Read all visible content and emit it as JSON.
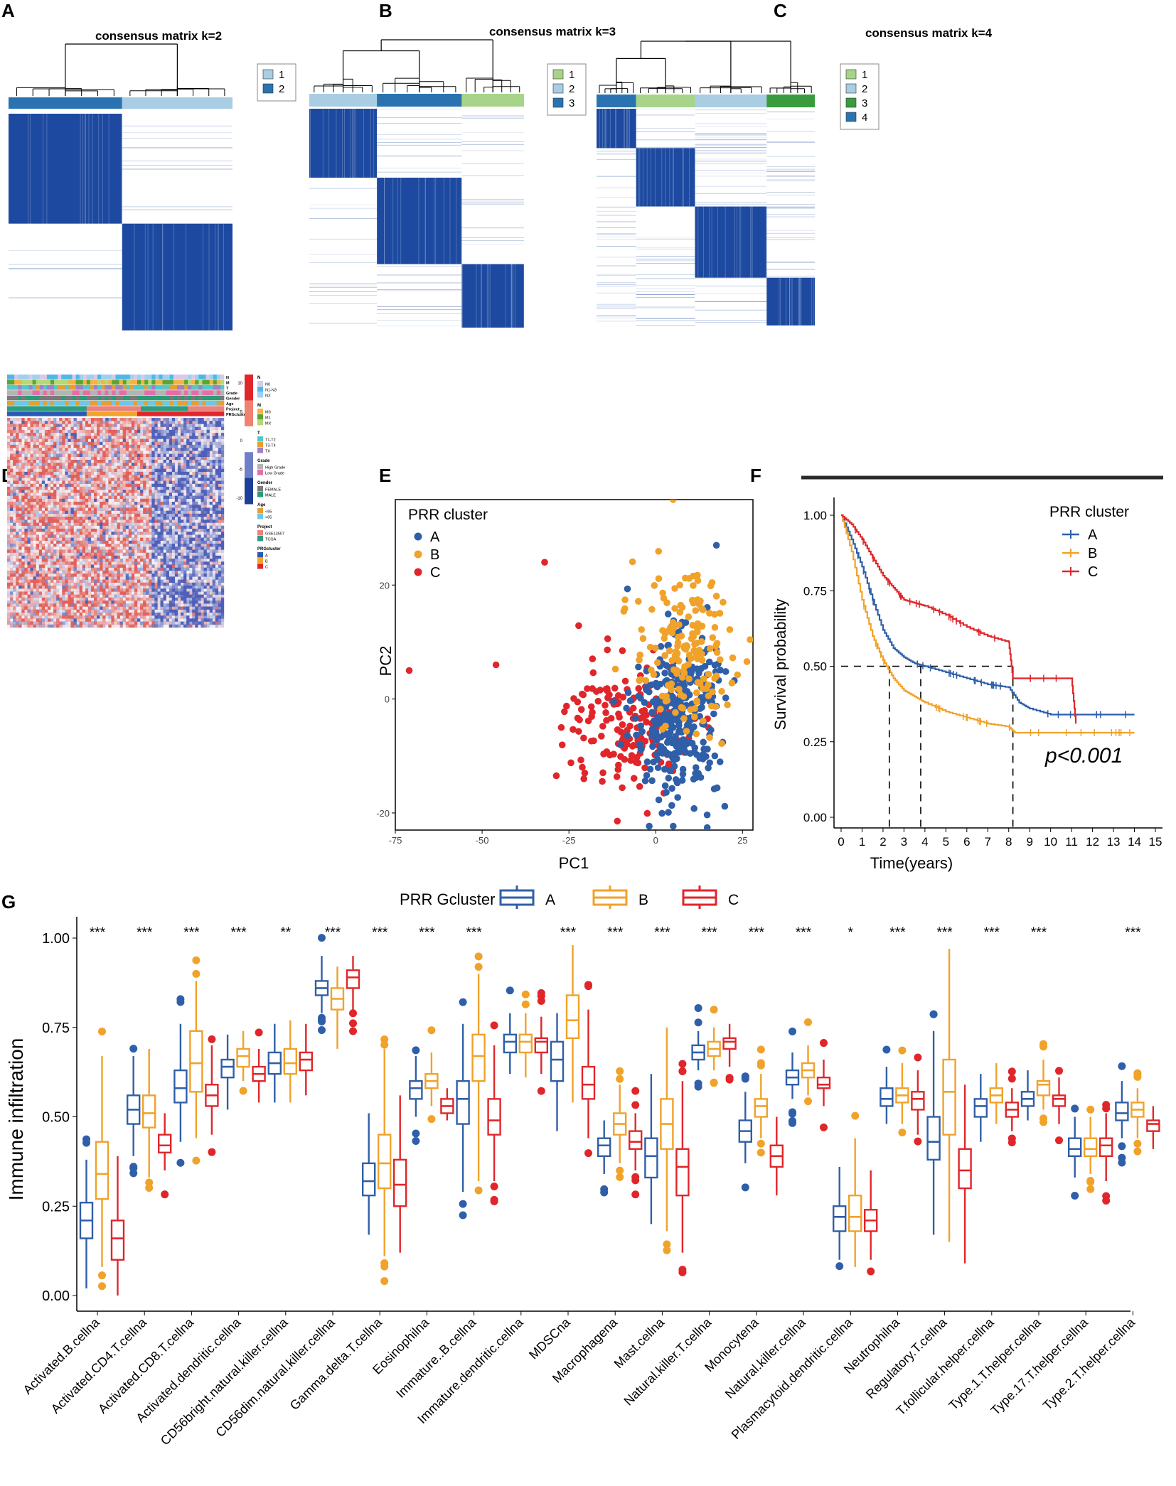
{
  "figure": {
    "panel_letters": [
      "A",
      "B",
      "C",
      "D",
      "E",
      "F",
      "G"
    ],
    "colors": {
      "blue": "#2f5fa8",
      "orange": "#f0a22a",
      "red": "#e0262b",
      "matrix": "#1d4aa0",
      "light_blue": "#a9cde3",
      "mid_blue": "#2a73b0",
      "light_green": "#a8d48a",
      "dark_green": "#3a9b3e"
    }
  },
  "chart_data": [
    {
      "panel": "A",
      "type": "heatmap",
      "title": "consensus matrix k=2",
      "legend": [
        "1",
        "2"
      ],
      "legend_colors": [
        "#a9cde3",
        "#2a73b0"
      ],
      "cluster_order": [
        2,
        1
      ],
      "cluster_sizes": [
        208,
        214
      ]
    },
    {
      "panel": "B",
      "type": "heatmap",
      "title": "consensus matrix k=3",
      "legend": [
        "1",
        "2",
        "3"
      ],
      "legend_colors": [
        "#a8d48a",
        "#a9cde3",
        "#2a73b0"
      ],
      "cluster_order": [
        2,
        3,
        1
      ],
      "cluster_sizes": [
        116,
        126,
        158
      ]
    },
    {
      "panel": "C",
      "type": "heatmap",
      "title": "consensus matrix k=4",
      "legend": [
        "1",
        "2",
        "3",
        "4"
      ],
      "legend_colors": [
        "#a8d48a",
        "#a9cde3",
        "#3a9b3e",
        "#2a73b0"
      ],
      "cluster_order": [
        4,
        1,
        2,
        3
      ],
      "cluster_sizes": [
        110,
        134,
        90,
        74
      ]
    },
    {
      "panel": "D",
      "type": "heatmap",
      "annotation_rows": [
        "N",
        "M",
        "T",
        "Grade",
        "Gender",
        "Age",
        "Project",
        "PRGcluster"
      ],
      "colorbar_ticks": [
        "10",
        "5",
        "0",
        "-5",
        "-10"
      ],
      "legend_groups": [
        {
          "title": "N",
          "items": [
            "N0",
            "N1-N3",
            "NX"
          ],
          "colors": [
            "#d9c8ea",
            "#4fb7e8",
            "#9fd0f0"
          ]
        },
        {
          "title": "M",
          "items": [
            "M0",
            "M1",
            "MX"
          ],
          "colors": [
            "#f4b343",
            "#5aa532",
            "#b6d877"
          ]
        },
        {
          "title": "T",
          "items": [
            "T1-T2",
            "T3-T4",
            "TX"
          ],
          "colors": [
            "#52c9c9",
            "#e4a030",
            "#a280c8"
          ]
        },
        {
          "title": "Grade",
          "items": [
            "High Grade",
            "Low Grade"
          ],
          "colors": [
            "#b4b4b4",
            "#e46fa8"
          ]
        },
        {
          "title": "Gender",
          "items": [
            "FEMALE",
            "MALE"
          ],
          "colors": [
            "#7a7a7a",
            "#2a9c78"
          ]
        },
        {
          "title": "Age",
          "items": [
            "<65",
            ">65"
          ],
          "colors": [
            "#e4a030",
            "#6fc7e6"
          ]
        },
        {
          "title": "Project",
          "items": [
            "GSE13507",
            "TCGA"
          ],
          "colors": [
            "#e8827d",
            "#2d9c7f"
          ]
        },
        {
          "title": "PRGcluster",
          "items": [
            "A",
            "B",
            "C"
          ],
          "colors": [
            "#2a58b5",
            "#f1a22a",
            "#e0262b"
          ]
        }
      ]
    },
    {
      "panel": "E",
      "type": "scatter",
      "xlabel": "PC1",
      "ylabel": "PC2",
      "legend_title": "PRR cluster",
      "legend": [
        "A",
        "B",
        "C"
      ],
      "xlim": [
        -75,
        28
      ],
      "ylim": [
        -23,
        35
      ],
      "xticks": [
        -75,
        -50,
        -25,
        0,
        25
      ],
      "yticks": [
        -20,
        0,
        20
      ],
      "series": [
        {
          "name": "A",
          "n": 330,
          "center": [
            6,
            -3
          ],
          "spread": [
            6,
            7
          ]
        },
        {
          "name": "B",
          "n": 170,
          "center": [
            8,
            8
          ],
          "spread": [
            7,
            7
          ]
        },
        {
          "name": "C",
          "n": 170,
          "center": [
            -8,
            -5
          ],
          "spread": [
            9,
            6
          ]
        }
      ]
    },
    {
      "panel": "F",
      "type": "line",
      "xlabel": "Time(years)",
      "ylabel": "Survival probability",
      "legend_title": "PRR cluster",
      "legend": [
        "A",
        "B",
        "C"
      ],
      "pvalue_label": "p<0.001",
      "xlim": [
        0,
        15
      ],
      "ylim": [
        0,
        1
      ],
      "xticks": [
        0,
        1,
        2,
        3,
        4,
        5,
        6,
        7,
        8,
        9,
        10,
        11,
        12,
        13,
        14,
        15
      ],
      "yticks": [
        "0.00",
        "0.25",
        "0.50",
        "0.75",
        "1.00"
      ],
      "medians": [
        3.8,
        2.3,
        8.2
      ],
      "series": [
        {
          "name": "A",
          "x": [
            0,
            0.5,
            1,
            1.5,
            2,
            2.5,
            3,
            3.5,
            4,
            5,
            6,
            7,
            8,
            8.5,
            9,
            10,
            11,
            12,
            13,
            14
          ],
          "y": [
            1,
            0.92,
            0.83,
            0.72,
            0.62,
            0.56,
            0.53,
            0.51,
            0.5,
            0.48,
            0.46,
            0.44,
            0.43,
            0.38,
            0.36,
            0.34,
            0.34,
            0.34,
            0.34,
            0.34
          ]
        },
        {
          "name": "B",
          "x": [
            0,
            0.5,
            1,
            1.5,
            2,
            2.5,
            3,
            3.5,
            4,
            5,
            6,
            7,
            8,
            8.3,
            9,
            10,
            11,
            12,
            13,
            14
          ],
          "y": [
            1,
            0.88,
            0.72,
            0.6,
            0.52,
            0.46,
            0.42,
            0.4,
            0.38,
            0.35,
            0.33,
            0.31,
            0.3,
            0.28,
            0.28,
            0.28,
            0.28,
            0.28,
            0.28,
            0.28
          ]
        },
        {
          "name": "C",
          "x": [
            0,
            0.5,
            1,
            1.5,
            2,
            2.5,
            3,
            3.5,
            4,
            5,
            6,
            7,
            8,
            8.2,
            9,
            10,
            11,
            11.2
          ],
          "y": [
            1,
            0.97,
            0.92,
            0.86,
            0.8,
            0.76,
            0.72,
            0.71,
            0.7,
            0.67,
            0.63,
            0.6,
            0.58,
            0.46,
            0.46,
            0.46,
            0.46,
            0.31
          ]
        }
      ]
    },
    {
      "panel": "G",
      "type": "box",
      "ylabel": "Immune infiltration",
      "legend_title": "PRR Gcluster",
      "legend": [
        "A",
        "B",
        "C"
      ],
      "ylim": [
        0,
        1.05
      ],
      "yticks": [
        "0.00",
        "0.25",
        "0.50",
        "0.75",
        "1.00"
      ],
      "categories": [
        "Activated.B.cellna",
        "Activated.CD4.T.cellna",
        "Activated.CD8.T.cellna",
        "Activated.dendritic.cellna",
        "CD56bright.natural.killer.cellna",
        "CD56dim.natural.killer.cellna",
        "Gamma.delta.T.cellna",
        "Eosinophilna",
        "Immature..B.cellna",
        "Immature.dendritic.cellna",
        "MDSCna",
        "Macrophagena",
        "Mast.cellna",
        "Natural.killer.T.cellna",
        "Monocytena",
        "Natural.killer.cellna",
        "Plasmacytoid.dendritic.cellna",
        "Neutrophilna",
        "Regulatory.T.cellna",
        "T.follicular.helper.cellna",
        "Type.1.T.helper.cellna",
        "Type.17.T.helper.cellna",
        "Type.2.T.helper.cellna"
      ],
      "significance": [
        "***",
        "***",
        "***",
        "***",
        "**",
        "***",
        "***",
        "***",
        "***",
        "",
        "***",
        "***",
        "***",
        "***",
        "***",
        "***",
        "*",
        "***",
        "***",
        "***",
        "***",
        "",
        "***"
      ],
      "series": [
        {
          "name": "A",
          "boxes": [
            [
              0.02,
              0.16,
              0.21,
              0.26,
              0.38
            ],
            [
              0.39,
              0.48,
              0.52,
              0.56,
              0.67
            ],
            [
              0.43,
              0.54,
              0.58,
              0.63,
              0.76
            ],
            [
              0.52,
              0.61,
              0.64,
              0.66,
              0.73
            ],
            [
              0.54,
              0.62,
              0.65,
              0.68,
              0.76
            ],
            [
              0.79,
              0.84,
              0.86,
              0.88,
              0.95
            ],
            [
              0.17,
              0.28,
              0.32,
              0.37,
              0.51
            ],
            [
              0.5,
              0.55,
              0.58,
              0.6,
              0.67
            ],
            [
              0.29,
              0.48,
              0.55,
              0.6,
              0.76
            ],
            [
              0.62,
              0.68,
              0.71,
              0.73,
              0.79
            ],
            [
              0.46,
              0.6,
              0.66,
              0.71,
              0.79
            ],
            [
              0.34,
              0.39,
              0.42,
              0.44,
              0.49
            ],
            [
              0.2,
              0.33,
              0.39,
              0.44,
              0.62
            ],
            [
              0.63,
              0.66,
              0.68,
              0.7,
              0.74
            ],
            [
              0.37,
              0.43,
              0.46,
              0.49,
              0.57
            ],
            [
              0.55,
              0.59,
              0.61,
              0.63,
              0.68
            ],
            [
              0.1,
              0.18,
              0.22,
              0.25,
              0.36
            ],
            [
              0.48,
              0.53,
              0.55,
              0.58,
              0.64
            ],
            [
              0.17,
              0.38,
              0.43,
              0.5,
              0.74
            ],
            [
              0.43,
              0.5,
              0.53,
              0.55,
              0.62
            ],
            [
              0.49,
              0.53,
              0.55,
              0.57,
              0.63
            ],
            [
              0.33,
              0.39,
              0.41,
              0.44,
              0.5
            ],
            [
              0.44,
              0.49,
              0.51,
              0.54,
              0.6
            ]
          ]
        },
        {
          "name": "B",
          "boxes": [
            [
              0.08,
              0.27,
              0.34,
              0.43,
              0.67
            ],
            [
              0.33,
              0.47,
              0.51,
              0.56,
              0.69
            ],
            [
              0.44,
              0.57,
              0.65,
              0.74,
              0.88
            ],
            [
              0.6,
              0.64,
              0.67,
              0.69,
              0.74
            ],
            [
              0.54,
              0.62,
              0.65,
              0.69,
              0.77
            ],
            [
              0.69,
              0.8,
              0.83,
              0.86,
              0.92
            ],
            [
              0.11,
              0.3,
              0.37,
              0.45,
              0.69
            ],
            [
              0.53,
              0.58,
              0.6,
              0.62,
              0.68
            ],
            [
              0.32,
              0.6,
              0.67,
              0.73,
              0.9
            ],
            [
              0.61,
              0.68,
              0.71,
              0.73,
              0.79
            ],
            [
              0.54,
              0.72,
              0.77,
              0.84,
              0.98
            ],
            [
              0.37,
              0.45,
              0.48,
              0.51,
              0.59
            ],
            [
              0.18,
              0.41,
              0.48,
              0.55,
              0.75
            ],
            [
              0.63,
              0.67,
              0.69,
              0.71,
              0.75
            ],
            [
              0.44,
              0.5,
              0.53,
              0.55,
              0.62
            ],
            [
              0.56,
              0.61,
              0.63,
              0.65,
              0.7
            ],
            [
              0.08,
              0.18,
              0.22,
              0.28,
              0.44
            ],
            [
              0.48,
              0.54,
              0.56,
              0.58,
              0.65
            ],
            [
              0.15,
              0.45,
              0.57,
              0.66,
              0.97
            ],
            [
              0.48,
              0.54,
              0.56,
              0.58,
              0.65
            ],
            [
              0.52,
              0.56,
              0.59,
              0.6,
              0.66
            ],
            [
              0.34,
              0.39,
              0.41,
              0.44,
              0.5
            ],
            [
              0.44,
              0.5,
              0.52,
              0.54,
              0.58
            ]
          ]
        },
        {
          "name": "C",
          "boxes": [
            [
              0.0,
              0.1,
              0.16,
              0.21,
              0.39
            ],
            [
              0.35,
              0.4,
              0.42,
              0.45,
              0.51
            ],
            [
              0.45,
              0.53,
              0.56,
              0.59,
              0.7
            ],
            [
              0.54,
              0.6,
              0.62,
              0.64,
              0.69
            ],
            [
              0.56,
              0.63,
              0.66,
              0.68,
              0.76
            ],
            [
              0.8,
              0.86,
              0.89,
              0.91,
              0.95
            ],
            [
              0.12,
              0.25,
              0.31,
              0.38,
              0.56
            ],
            [
              0.49,
              0.51,
              0.53,
              0.55,
              0.58
            ],
            [
              0.32,
              0.45,
              0.49,
              0.55,
              0.7
            ],
            [
              0.62,
              0.68,
              0.71,
              0.72,
              0.78
            ],
            [
              0.44,
              0.55,
              0.59,
              0.64,
              0.8
            ],
            [
              0.35,
              0.41,
              0.43,
              0.46,
              0.51
            ],
            [
              0.12,
              0.28,
              0.36,
              0.41,
              0.6
            ],
            [
              0.64,
              0.69,
              0.71,
              0.72,
              0.76
            ],
            [
              0.28,
              0.36,
              0.39,
              0.42,
              0.5
            ],
            [
              0.53,
              0.58,
              0.59,
              0.61,
              0.66
            ],
            [
              0.1,
              0.18,
              0.21,
              0.24,
              0.35
            ],
            [
              0.45,
              0.52,
              0.55,
              0.57,
              0.63
            ],
            [
              0.09,
              0.3,
              0.35,
              0.41,
              0.59
            ],
            [
              0.46,
              0.5,
              0.52,
              0.54,
              0.58
            ],
            [
              0.48,
              0.53,
              0.55,
              0.56,
              0.61
            ],
            [
              0.32,
              0.39,
              0.42,
              0.44,
              0.51
            ],
            [
              0.41,
              0.46,
              0.48,
              0.49,
              0.53
            ]
          ]
        }
      ]
    }
  ]
}
